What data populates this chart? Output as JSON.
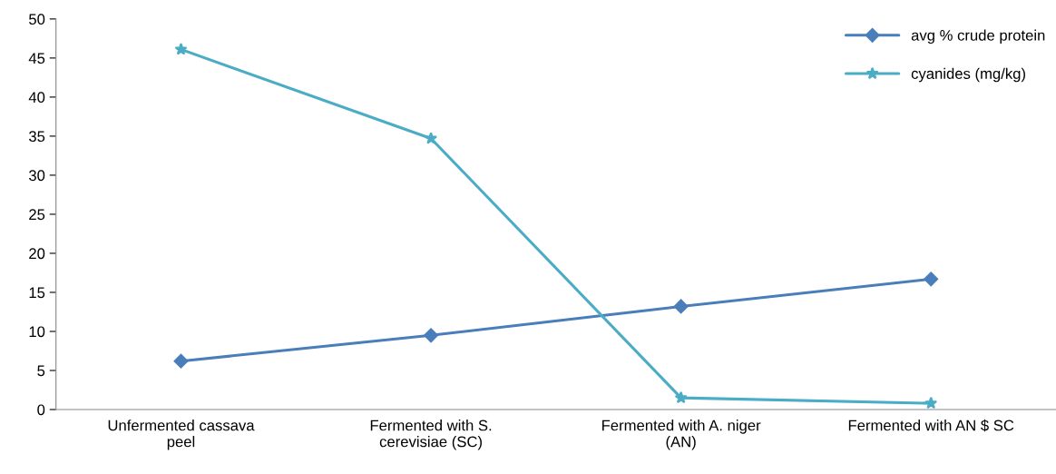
{
  "chart_data": {
    "type": "line",
    "categories": [
      "Unfermented cassava\npeel",
      "Fermented with S.\ncerevisiae (SC)",
      "Fermented with A. niger\n(AN)",
      "Fermented with AN $ SC"
    ],
    "series": [
      {
        "name": "avg % crude protein",
        "color": "#4a7ebb",
        "marker": "diamond",
        "values": [
          6.2,
          9.5,
          13.2,
          16.7
        ]
      },
      {
        "name": "cyanides (mg/kg)",
        "color": "#4bacc6",
        "marker": "star",
        "values": [
          46.1,
          34.7,
          1.5,
          0.8
        ]
      }
    ],
    "ylim": [
      0,
      50
    ],
    "yticks": [
      0,
      5,
      10,
      15,
      20,
      25,
      30,
      35,
      40,
      45,
      50
    ],
    "grid": false,
    "legend": "top right",
    "line_style": "solid"
  }
}
